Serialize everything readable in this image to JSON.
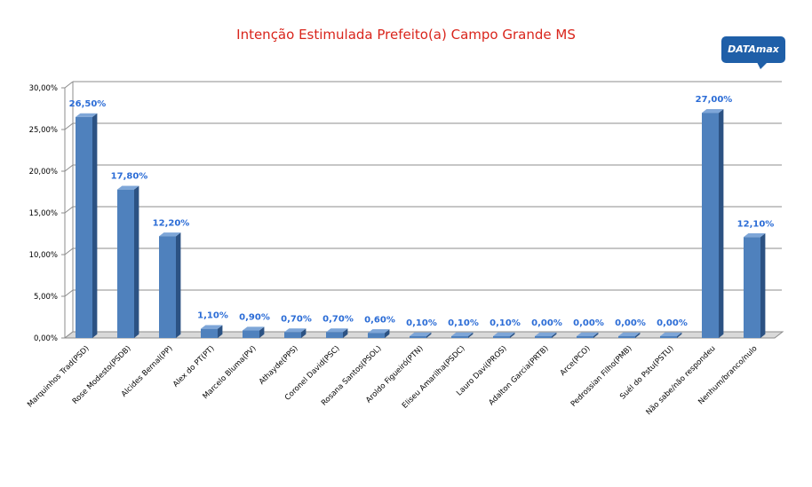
{
  "title": "Intenção Estimulada Prefeito(a) Campo Grande MS",
  "logo_text": "DATAmax",
  "colors": {
    "title": "#d9251c",
    "bar_front": "#4f81bd",
    "bar_side": "#2c5283",
    "bar_top": "#7ea6d8",
    "data_label": "#2b6cd6",
    "logo_bg": "#1f5fa8"
  },
  "chart_data": {
    "type": "bar",
    "title": "Intenção Estimulada Prefeito(a) Campo Grande MS",
    "xlabel": "",
    "ylabel": "",
    "ylim": [
      0,
      30
    ],
    "yticks": [
      "0,00%",
      "5,00%",
      "10,00%",
      "15,00%",
      "20,00%",
      "25,00%",
      "30,00%"
    ],
    "grid": true,
    "categories": [
      "Marquinhos Trad(PSD)",
      "Rose Modesto(PSDB)",
      "Alcides Bernal(PP)",
      "Alex do PT(PT)",
      "Marcelo Bluma(PV)",
      "Athayde(PPS)",
      "Coronel David(PSC)",
      "Rosana Santos(PSOL)",
      "Aroldo Figueiró(PTN)",
      "Eliseu Amarilha(PSDC)",
      "Lauro Davi(PROS)",
      "Adalton Garcia(PRTB)",
      "Arce(PCO)",
      "Pedrossian Filho(PMB)",
      "Suél do Pstu(PSTU)",
      "Não sabe/não respondeu",
      "Nenhum/branco/nulo"
    ],
    "values": [
      26.5,
      17.8,
      12.2,
      1.1,
      0.9,
      0.7,
      0.7,
      0.6,
      0.1,
      0.1,
      0.1,
      0.0,
      0.0,
      0.0,
      0.0,
      27.0,
      12.1
    ],
    "data_labels": [
      "26,50%",
      "17,80%",
      "12,20%",
      "1,10%",
      "0,90%",
      "0,70%",
      "0,70%",
      "0,60%",
      "0,10%",
      "0,10%",
      "0,10%",
      "0,00%",
      "0,00%",
      "0,00%",
      "0,00%",
      "27,00%",
      "12,10%"
    ]
  }
}
